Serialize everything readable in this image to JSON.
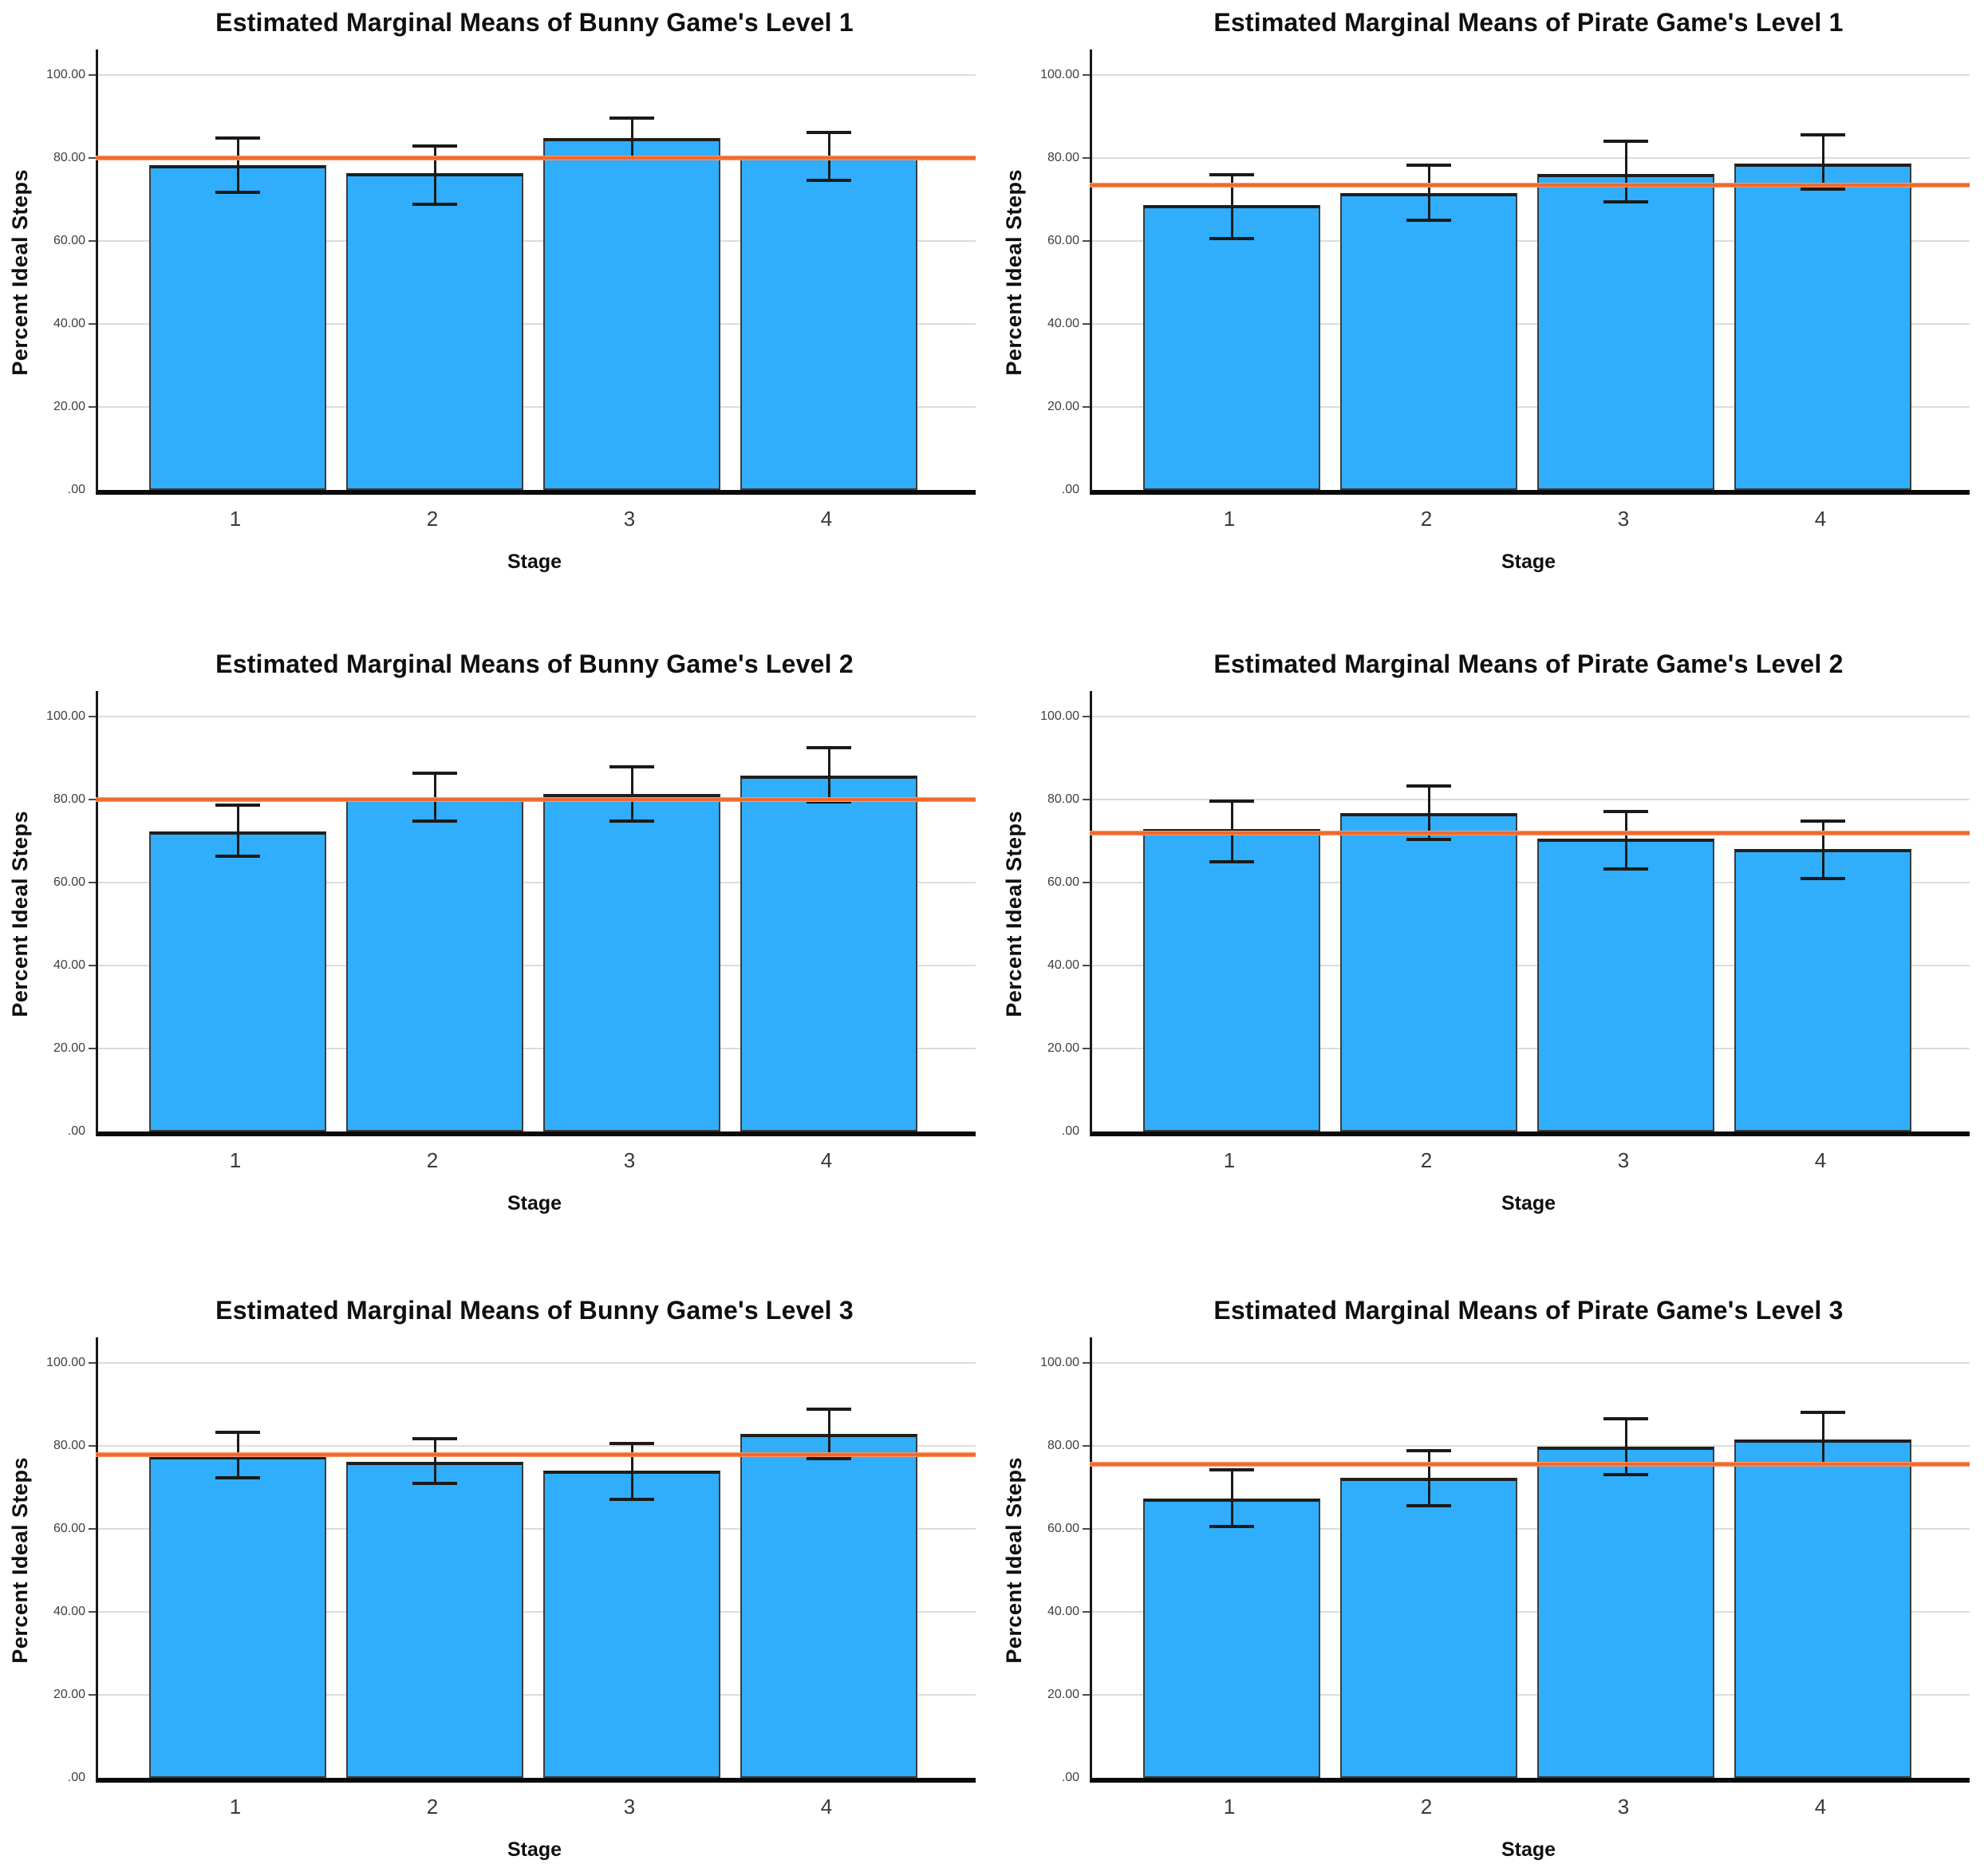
{
  "page": {
    "background": "#ffffff"
  },
  "colors": {
    "bar_fill": "#30AEFB",
    "bar_border_side": "#3c3c3c",
    "bar_border_top": "#1e1e1e",
    "error_bar": "#1a1a1a",
    "reference_line_core": "#F2662B",
    "reference_line_glow": "#F9A97C",
    "gridline": "#DCDCDC",
    "axis_line": "#111111",
    "tick_label": "#3f3f3f",
    "title_text": "#0f0f0f"
  },
  "chart_data": [
    {
      "id": "bunny-level-1",
      "type": "bar",
      "title": "Estimated Marginal Means of Bunny Game's Level 1",
      "xlabel": "Stage",
      "ylabel": "Percent Ideal Steps",
      "categories": [
        "1",
        "2",
        "3",
        "4"
      ],
      "values": [
        78.3,
        76.3,
        84.8,
        80.6
      ],
      "error_low": [
        71.7,
        68.8,
        80.0,
        74.6
      ],
      "error_high": [
        84.8,
        82.9,
        89.6,
        86.2
      ],
      "reference_line": 80.0,
      "ylim": [
        0,
        106
      ],
      "yticks": [
        0,
        20,
        40,
        60,
        80,
        100
      ],
      "ytick_labels": [
        ".00",
        "20.00",
        "40.00",
        "60.00",
        "80.00",
        "100.00"
      ],
      "grid": true,
      "legend": null
    },
    {
      "id": "pirate-level-1",
      "type": "bar",
      "title": "Estimated Marginal Means of Pirate Game's Level 1",
      "xlabel": "Stage",
      "ylabel": "Percent Ideal Steps",
      "categories": [
        "1",
        "2",
        "3",
        "4"
      ],
      "values": [
        68.7,
        71.5,
        76.2,
        78.6
      ],
      "error_low": [
        60.5,
        65.0,
        69.5,
        72.5
      ],
      "error_high": [
        76.0,
        78.3,
        84.0,
        85.5
      ],
      "reference_line": 73.5,
      "ylim": [
        0,
        106
      ],
      "yticks": [
        0,
        20,
        40,
        60,
        80,
        100
      ],
      "ytick_labels": [
        ".00",
        "20.00",
        "40.00",
        "60.00",
        "80.00",
        "100.00"
      ],
      "grid": true,
      "legend": null
    },
    {
      "id": "bunny-level-2",
      "type": "bar",
      "title": "Estimated Marginal Means of Bunny Game's Level 2",
      "xlabel": "Stage",
      "ylabel": "Percent Ideal Steps",
      "categories": [
        "1",
        "2",
        "3",
        "4"
      ],
      "values": [
        72.3,
        80.4,
        81.4,
        85.7
      ],
      "error_low": [
        66.3,
        74.8,
        74.8,
        79.5
      ],
      "error_high": [
        78.7,
        86.3,
        87.8,
        92.5
      ],
      "reference_line": 80.0,
      "ylim": [
        0,
        106
      ],
      "yticks": [
        0,
        20,
        40,
        60,
        80,
        100
      ],
      "ytick_labels": [
        ".00",
        "20.00",
        "40.00",
        "60.00",
        "80.00",
        "100.00"
      ],
      "grid": true,
      "legend": null
    },
    {
      "id": "pirate-level-2",
      "type": "bar",
      "title": "Estimated Marginal Means of Pirate Game's Level 2",
      "xlabel": "Stage",
      "ylabel": "Percent Ideal Steps",
      "categories": [
        "1",
        "2",
        "3",
        "4"
      ],
      "values": [
        72.8,
        76.8,
        70.5,
        68.0
      ],
      "error_low": [
        65.0,
        70.3,
        63.3,
        61.0
      ],
      "error_high": [
        79.6,
        83.3,
        77.2,
        74.8
      ],
      "reference_line": 72.0,
      "ylim": [
        0,
        106
      ],
      "yticks": [
        0,
        20,
        40,
        60,
        80,
        100
      ],
      "ytick_labels": [
        ".00",
        "20.00",
        "40.00",
        "60.00",
        "80.00",
        "100.00"
      ],
      "grid": true,
      "legend": null
    },
    {
      "id": "bunny-level-3",
      "type": "bar",
      "title": "Estimated Marginal Means of Bunny Game's Level 3",
      "xlabel": "Stage",
      "ylabel": "Percent Ideal Steps",
      "categories": [
        "1",
        "2",
        "3",
        "4"
      ],
      "values": [
        77.5,
        76.2,
        74.0,
        82.9
      ],
      "error_low": [
        72.4,
        70.9,
        67.2,
        76.9
      ],
      "error_high": [
        83.2,
        81.8,
        80.5,
        88.9
      ],
      "reference_line": 77.8,
      "ylim": [
        0,
        106
      ],
      "yticks": [
        0,
        20,
        40,
        60,
        80,
        100
      ],
      "ytick_labels": [
        ".00",
        "20.00",
        "40.00",
        "60.00",
        "80.00",
        "100.00"
      ],
      "grid": true,
      "legend": null
    },
    {
      "id": "pirate-level-3",
      "type": "bar",
      "title": "Estimated Marginal Means of Pirate Game's Level 3",
      "xlabel": "Stage",
      "ylabel": "Percent Ideal Steps",
      "categories": [
        "1",
        "2",
        "3",
        "4"
      ],
      "values": [
        67.3,
        72.4,
        79.8,
        81.5
      ],
      "error_low": [
        60.5,
        65.5,
        73.0,
        75.4
      ],
      "error_high": [
        74.3,
        78.9,
        86.5,
        88.1
      ],
      "reference_line": 75.5,
      "ylim": [
        0,
        106
      ],
      "yticks": [
        0,
        20,
        40,
        60,
        80,
        100
      ],
      "ytick_labels": [
        ".00",
        "20.00",
        "40.00",
        "60.00",
        "80.00",
        "100.00"
      ],
      "grid": true,
      "legend": null
    }
  ]
}
